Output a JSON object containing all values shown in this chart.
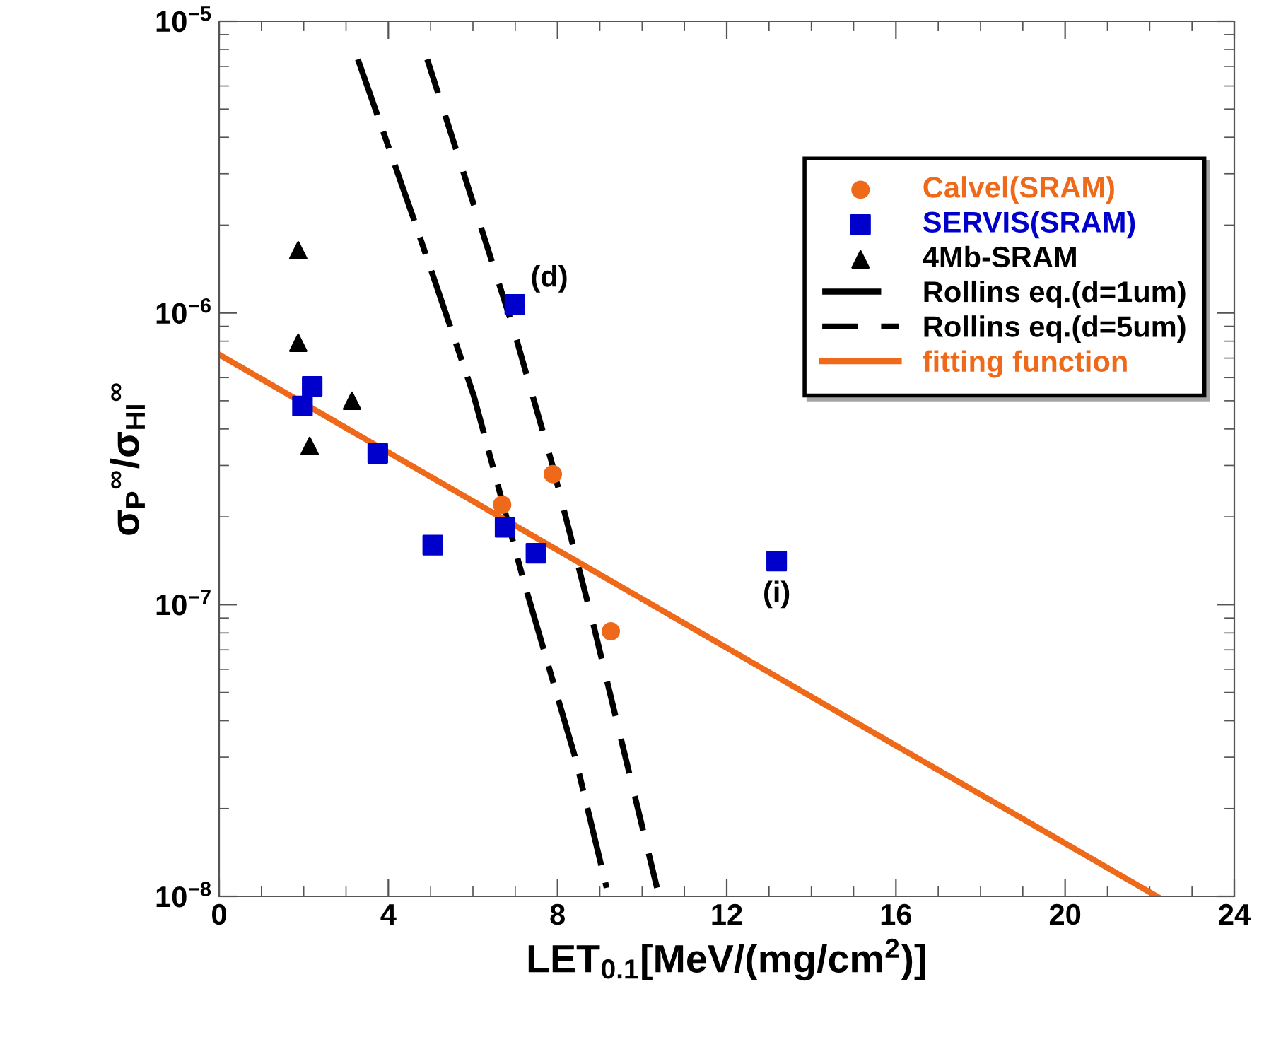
{
  "chart_data": {
    "type": "scatter",
    "xlabel": "LET$_{0.1}$[MeV/(mg/cm$^{2}$)]",
    "ylabel": "σ$_{P}$$^{∞}$/σ$_{HI}$$^{∞}$",
    "log": "y",
    "xlim": [
      0,
      24
    ],
    "xticks": [
      0,
      4,
      8,
      12,
      16,
      20,
      24
    ],
    "ylim": [
      1e-08,
      1e-05
    ],
    "yticks": [
      {
        "value": 1e-08,
        "label": "10$^{−8}$"
      },
      {
        "value": 1e-07,
        "label": "10$^{−7}$"
      },
      {
        "value": 1e-06,
        "label": "10$^{−6}$"
      },
      {
        "value": 1e-05,
        "label": "10$^{−5}$"
      }
    ],
    "grid": false,
    "legend": "top right",
    "series": [
      {
        "name": "Calvel(SRAM)",
        "marker": "circle",
        "color": "#ee6a1a",
        "x": [
          6.69,
          7.89,
          9.26
        ],
        "values": [
          2.2e-07,
          2.8e-07,
          8.1e-08
        ]
      },
      {
        "name": "SERVIS(SRAM)",
        "marker": "square",
        "color": "#0000cc",
        "x": [
          1.97,
          2.2,
          3.75,
          5.05,
          6.76,
          7.49,
          6.99,
          13.18
        ],
        "values": [
          4.8e-07,
          5.6e-07,
          3.3e-07,
          1.6e-07,
          1.84e-07,
          1.5e-07,
          1.07e-06,
          1.41e-07
        ]
      },
      {
        "name": "4Mb-SRAM",
        "marker": "triangle",
        "color": "#000000",
        "x": [
          1.87,
          1.87,
          3.14,
          2.14
        ],
        "values": [
          1.64e-06,
          7.9e-07,
          5e-07,
          3.5e-07
        ]
      },
      {
        "name": "Rollins eq.(d=1um)",
        "type": "line",
        "line_style": "dashdot",
        "color": "#000000",
        "x": [
          3.28,
          4.58,
          6.02,
          7.19,
          8.43,
          9.16
        ],
        "values": [
          7.4e-06,
          2.14e-06,
          5.2e-07,
          1.22e-07,
          2.95e-08,
          1.07e-08
        ]
      },
      {
        "name": "Rollins eq.(d=5um)",
        "type": "line",
        "line_style": "dashed",
        "color": "#000000",
        "x": [
          4.92,
          6.96,
          7.86,
          8.86,
          10.4
        ],
        "values": [
          7.4e-06,
          8.8e-07,
          3.08e-07,
          8.4e-08,
          1e-08
        ]
      },
      {
        "name": "fitting function",
        "type": "line",
        "line_style": "solid",
        "color": "#ee6a1a",
        "x": [
          0,
          22.17
        ],
        "values": [
          7.2e-07,
          1e-08
        ]
      }
    ],
    "annotations": [
      {
        "text": "(d)",
        "x": 6.99,
        "y": 1.07e-06
      },
      {
        "text": "(i)",
        "x": 13.18,
        "y": 1.41e-07
      }
    ]
  }
}
